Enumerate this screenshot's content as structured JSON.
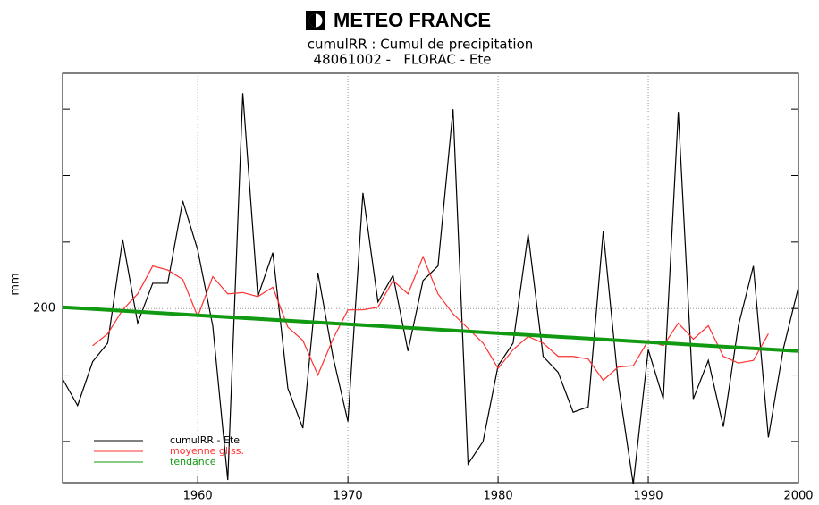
{
  "chart_data": {
    "type": "line",
    "title": "METEO FRANCE",
    "subtitle": "cumulRR : Cumul de precipitation",
    "subtitle2": "48061002 -   FLORAC - Ete",
    "ylabel": "mm",
    "xlim": [
      1951,
      2000
    ],
    "xticks": [
      1960,
      1970,
      1980,
      1990,
      2000
    ],
    "ylim": [
      69,
      377
    ],
    "yticks": [
      200
    ],
    "minor_yticks": [
      100,
      150,
      250,
      300,
      350
    ],
    "grid": true,
    "legend": "lower left",
    "series": [
      {
        "name": "cumulRR - Ete",
        "color": "#000000",
        "x": [
          1951,
          1952,
          1953,
          1954,
          1955,
          1956,
          1957,
          1958,
          1959,
          1960,
          1961,
          1962,
          1963,
          1964,
          1965,
          1966,
          1967,
          1968,
          1969,
          1970,
          1971,
          1972,
          1973,
          1974,
          1975,
          1976,
          1977,
          1978,
          1979,
          1980,
          1981,
          1982,
          1983,
          1984,
          1985,
          1986,
          1987,
          1988,
          1989,
          1990,
          1991,
          1992,
          1993,
          1994,
          1995,
          1996,
          1997,
          1998,
          1999,
          2000
        ],
        "values": [
          147,
          127,
          160,
          174,
          252,
          189,
          219,
          219,
          281,
          244,
          187,
          71,
          362,
          209,
          242,
          140,
          110,
          227,
          164,
          115,
          287,
          205,
          225,
          168,
          221,
          232,
          350,
          83,
          100,
          157,
          174,
          256,
          164,
          152,
          122,
          126,
          258,
          144,
          68,
          169,
          132,
          348,
          132,
          161,
          111,
          187,
          232,
          103,
          170,
          216
        ]
      },
      {
        "name": "moyenne gliss.",
        "color": "#ff3030",
        "x": [
          1953,
          1954,
          1955,
          1956,
          1957,
          1958,
          1959,
          1960,
          1961,
          1962,
          1963,
          1964,
          1965,
          1966,
          1967,
          1968,
          1969,
          1970,
          1971,
          1972,
          1973,
          1974,
          1975,
          1976,
          1977,
          1978,
          1979,
          1980,
          1981,
          1982,
          1983,
          1984,
          1985,
          1986,
          1987,
          1988,
          1989,
          1990,
          1991,
          1992,
          1993,
          1994,
          1995,
          1996,
          1997,
          1998
        ],
        "values": [
          172,
          181,
          199,
          211,
          232,
          229,
          222,
          194,
          224,
          211,
          212,
          209,
          216,
          186,
          176,
          150,
          177,
          199,
          199,
          201,
          221,
          211,
          239,
          211,
          196,
          185,
          174,
          155,
          169,
          179,
          174,
          164,
          164,
          162,
          146,
          156,
          157,
          176,
          172,
          189,
          177,
          187,
          164,
          159,
          161,
          181
        ]
      },
      {
        "name": "tendance",
        "color": "#119911",
        "x": [
          1951,
          2000
        ],
        "values": [
          201,
          168
        ]
      }
    ]
  }
}
